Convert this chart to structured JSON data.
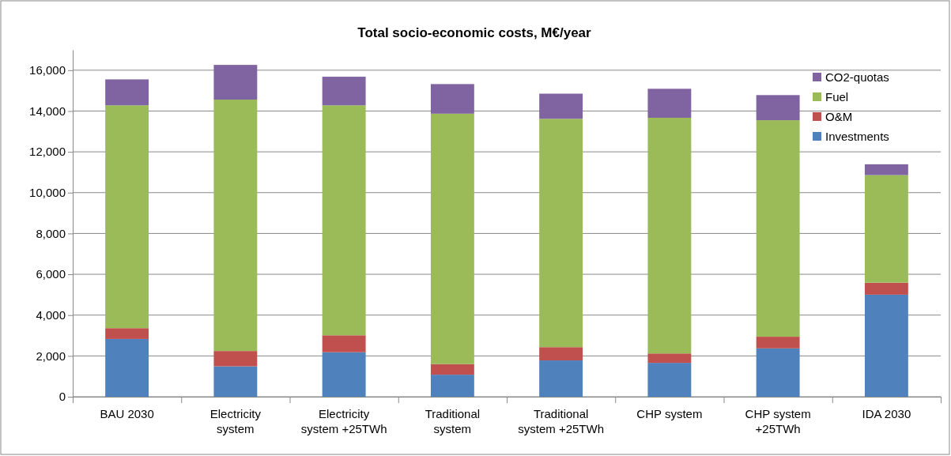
{
  "chart_data": {
    "type": "bar",
    "title": "Total socio-economic costs,  M€/year",
    "stacked": true,
    "categories": [
      "BAU 2030",
      "Electricity system",
      "Electricity system +25TWh",
      "Traditional system",
      "Traditional system +25TWh",
      "CHP system",
      "CHP system +25TWh",
      "IDA 2030"
    ],
    "series": [
      {
        "name": "Investments",
        "color": "#4f81bd",
        "values": [
          2830,
          1490,
          2180,
          1080,
          1780,
          1660,
          2370,
          5000
        ]
      },
      {
        "name": "O&M",
        "color": "#c0504d",
        "values": [
          530,
          750,
          830,
          520,
          650,
          460,
          570,
          590
        ]
      },
      {
        "name": "Fuel",
        "color": "#9bbb59",
        "values": [
          10920,
          12320,
          11270,
          12270,
          11190,
          11550,
          10610,
          5270
        ]
      },
      {
        "name": "CO2-quotas",
        "color": "#8064a2",
        "values": [
          1270,
          1700,
          1400,
          1450,
          1230,
          1420,
          1230,
          530
        ]
      }
    ],
    "ylim": [
      0,
      17000
    ],
    "yticks": [
      {
        "value": 0,
        "label": "0"
      },
      {
        "value": 2000,
        "label": "2,000"
      },
      {
        "value": 4000,
        "label": "4,000"
      },
      {
        "value": 6000,
        "label": "6,000"
      },
      {
        "value": 8000,
        "label": "8,000"
      },
      {
        "value": 10000,
        "label": "10,000"
      },
      {
        "value": 12000,
        "label": "12,000"
      },
      {
        "value": 14000,
        "label": "14,000"
      },
      {
        "value": 16000,
        "label": "16,000"
      }
    ],
    "grid": "y",
    "legend": "top right"
  }
}
